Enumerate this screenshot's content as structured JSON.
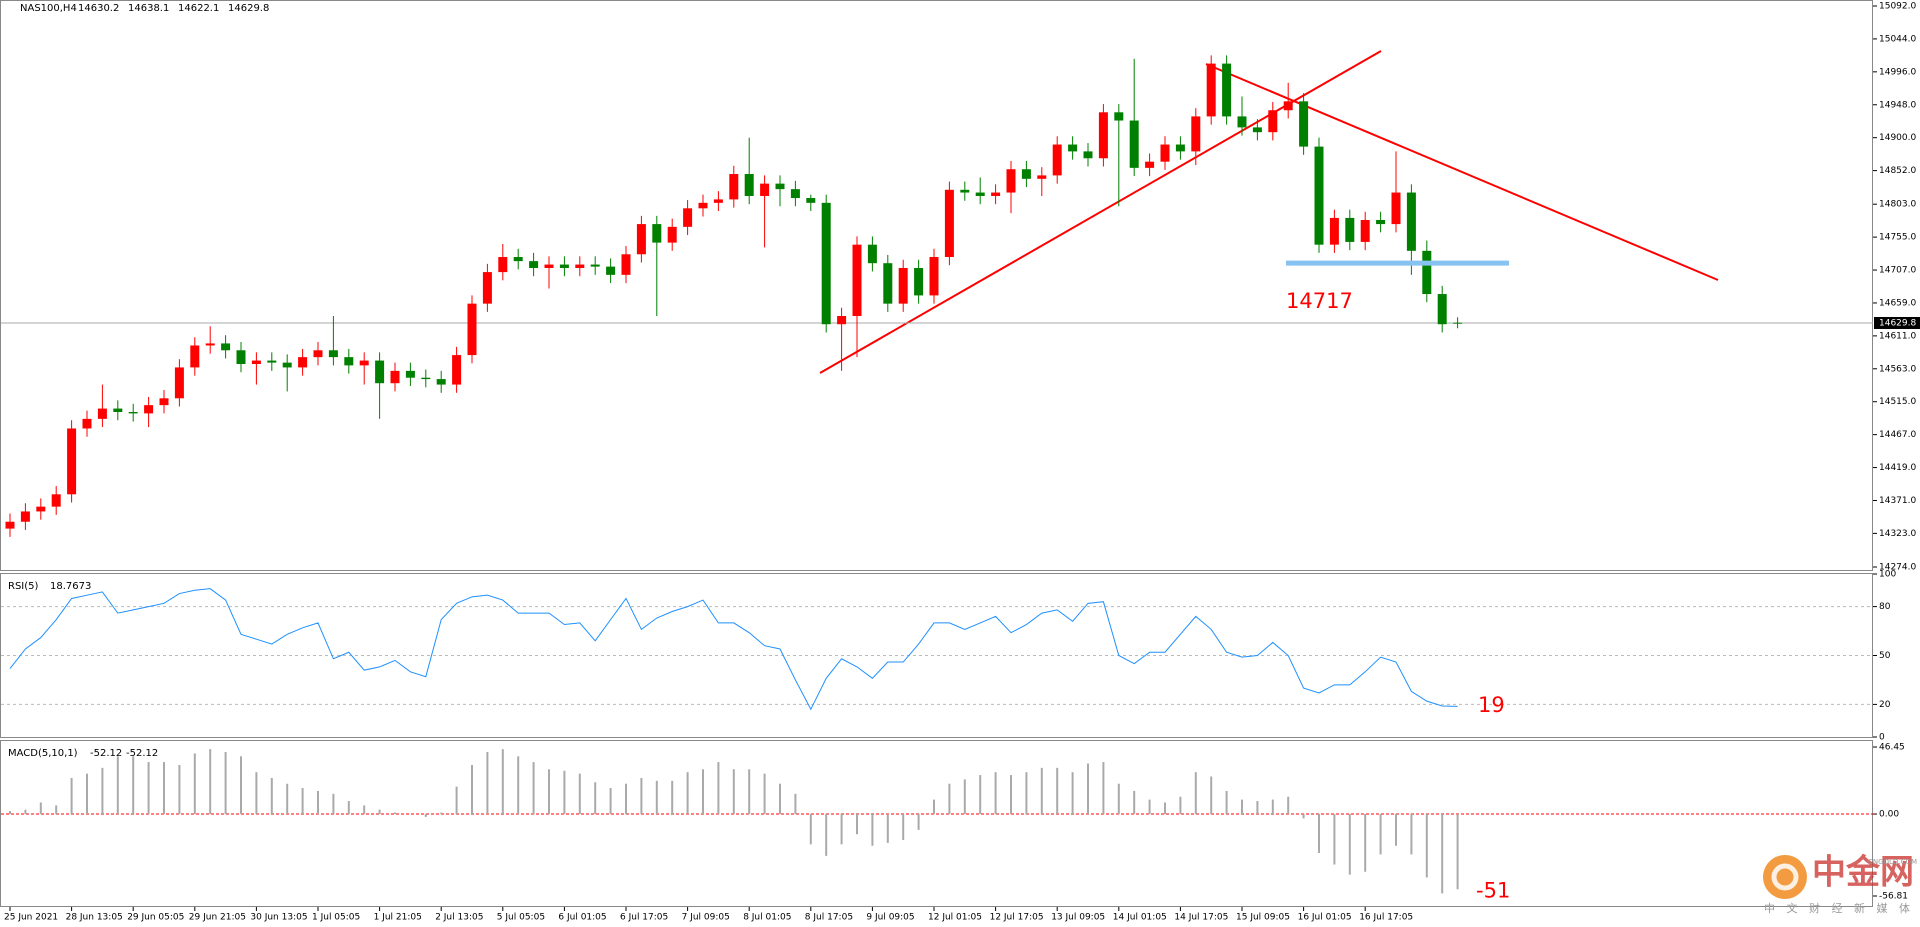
{
  "chart_data": [
    {
      "type": "candlestick",
      "title": "NAS100,H4",
      "categories": [
        "25 Jun 2021",
        null,
        null,
        null,
        "28 Jun 13:05",
        null,
        null,
        null,
        "29 Jun 05:05",
        null,
        null,
        null,
        "29 Jun 21:05",
        null,
        null,
        null,
        "30 Jun 13:05",
        null,
        null,
        null,
        "1 Jul 05:05",
        null,
        null,
        null,
        "1 Jul 21:05",
        null,
        null,
        null,
        "2 Jul 13:05",
        null,
        null,
        null,
        "5 Jul 05:05",
        null,
        null,
        null,
        "6 Jul 01:05",
        null,
        null,
        null,
        "6 Jul 17:05",
        null,
        null,
        null,
        "7 Jul 09:05",
        null,
        null,
        null,
        "8 Jul 01:05",
        null,
        null,
        null,
        "8 Jul 17:05",
        null,
        null,
        null,
        "9 Jul 09:05",
        null,
        null,
        null,
        "12 Jul 01:05",
        null,
        null,
        null,
        "12 Jul 17:05",
        null,
        null,
        null,
        "13 Jul 09:05",
        null,
        null,
        null,
        "14 Jul 01:05",
        null,
        null,
        null,
        "14 Jul 17:05",
        null,
        null,
        null,
        "15 Jul 09:05",
        null,
        null,
        null,
        "16 Jul 01:05",
        null,
        null,
        null,
        "16 Jul 17:05",
        null,
        null,
        null,
        null,
        null,
        null
      ],
      "ohlc": [
        [
          14330,
          14352,
          14318,
          14340
        ],
        [
          14340,
          14367,
          14328,
          14355
        ],
        [
          14355,
          14374,
          14343,
          14362
        ],
        [
          14362,
          14392,
          14350,
          14380
        ],
        [
          14380,
          14488,
          14368,
          14476
        ],
        [
          14476,
          14502,
          14464,
          14490
        ],
        [
          14490,
          14540,
          14478,
          14505
        ],
        [
          14505,
          14517,
          14488,
          14500
        ],
        [
          14500,
          14512,
          14486,
          14498
        ],
        [
          14498,
          14522,
          14478,
          14510
        ],
        [
          14510,
          14532,
          14498,
          14520
        ],
        [
          14520,
          14577,
          14508,
          14565
        ],
        [
          14565,
          14609,
          14553,
          14597
        ],
        [
          14597,
          14625,
          14585,
          14600
        ],
        [
          14600,
          14612,
          14578,
          14590
        ],
        [
          14590,
          14602,
          14558,
          14570
        ],
        [
          14570,
          14587,
          14540,
          14575
        ],
        [
          14575,
          14587,
          14560,
          14572
        ],
        [
          14572,
          14584,
          14530,
          14565
        ],
        [
          14565,
          14592,
          14553,
          14580
        ],
        [
          14580,
          14602,
          14568,
          14590
        ],
        [
          14590,
          14640,
          14568,
          14580
        ],
        [
          14580,
          14592,
          14556,
          14568
        ],
        [
          14568,
          14587,
          14540,
          14575
        ],
        [
          14575,
          14587,
          14490,
          14542
        ],
        [
          14542,
          14572,
          14530,
          14560
        ],
        [
          14560,
          14572,
          14538,
          14550
        ],
        [
          14550,
          14562,
          14536,
          14548
        ],
        [
          14548,
          14560,
          14528,
          14540
        ],
        [
          14540,
          14595,
          14528,
          14583
        ],
        [
          14583,
          14670,
          14571,
          14658
        ],
        [
          14658,
          14716,
          14646,
          14704
        ],
        [
          14704,
          14745,
          14692,
          14726
        ],
        [
          14726,
          14738,
          14708,
          14720
        ],
        [
          14720,
          14732,
          14698,
          14710
        ],
        [
          14710,
          14727,
          14680,
          14715
        ],
        [
          14715,
          14727,
          14698,
          14710
        ],
        [
          14710,
          14727,
          14698,
          14715
        ],
        [
          14715,
          14727,
          14700,
          14712
        ],
        [
          14712,
          14724,
          14688,
          14700
        ],
        [
          14700,
          14742,
          14688,
          14730
        ],
        [
          14730,
          14786,
          14718,
          14774
        ],
        [
          14774,
          14786,
          14640,
          14747
        ],
        [
          14747,
          14782,
          14735,
          14770
        ],
        [
          14770,
          14809,
          14758,
          14797
        ],
        [
          14797,
          14817,
          14785,
          14805
        ],
        [
          14805,
          14822,
          14793,
          14810
        ],
        [
          14810,
          14859,
          14798,
          14847
        ],
        [
          14847,
          14900,
          14803,
          14815
        ],
        [
          14815,
          14845,
          14740,
          14833
        ],
        [
          14833,
          14845,
          14800,
          14825
        ],
        [
          14825,
          14837,
          14800,
          14812
        ],
        [
          14812,
          14817,
          14793,
          14805
        ],
        [
          14805,
          14817,
          14616,
          14628
        ],
        [
          14628,
          14652,
          14560,
          14640
        ],
        [
          14640,
          14756,
          14580,
          14744
        ],
        [
          14744,
          14756,
          14705,
          14717
        ],
        [
          14717,
          14729,
          14646,
          14658
        ],
        [
          14658,
          14722,
          14646,
          14710
        ],
        [
          14710,
          14722,
          14658,
          14670
        ],
        [
          14670,
          14738,
          14658,
          14726
        ],
        [
          14726,
          14836,
          14714,
          14824
        ],
        [
          14824,
          14836,
          14808,
          14820
        ],
        [
          14820,
          14842,
          14803,
          14815
        ],
        [
          14815,
          14832,
          14803,
          14820
        ],
        [
          14820,
          14866,
          14790,
          14854
        ],
        [
          14854,
          14866,
          14828,
          14840
        ],
        [
          14840,
          14857,
          14815,
          14845
        ],
        [
          14845,
          14902,
          14833,
          14890
        ],
        [
          14890,
          14902,
          14868,
          14880
        ],
        [
          14880,
          14892,
          14858,
          14870
        ],
        [
          14870,
          14949,
          14858,
          14937
        ],
        [
          14937,
          14949,
          14800,
          14925
        ],
        [
          14925,
          15015,
          14844,
          14856
        ],
        [
          14856,
          14877,
          14844,
          14865
        ],
        [
          14865,
          14902,
          14853,
          14890
        ],
        [
          14890,
          14902,
          14868,
          14880
        ],
        [
          14880,
          14943,
          14860,
          14931
        ],
        [
          14931,
          15020,
          14919,
          15008
        ],
        [
          15008,
          15020,
          14919,
          14931
        ],
        [
          14931,
          14960,
          14903,
          14915
        ],
        [
          14915,
          14927,
          14896,
          14908
        ],
        [
          14908,
          14952,
          14896,
          14940
        ],
        [
          14940,
          14980,
          14928,
          14953
        ],
        [
          14953,
          14965,
          14875,
          14887
        ],
        [
          14887,
          14900,
          14732,
          14744
        ],
        [
          14744,
          14795,
          14732,
          14783
        ],
        [
          14783,
          14795,
          14736,
          14748
        ],
        [
          14748,
          14792,
          14736,
          14780
        ],
        [
          14780,
          14792,
          14762,
          14774
        ],
        [
          14774,
          14880,
          14762,
          14820
        ],
        [
          14820,
          14832,
          14700,
          14735
        ],
        [
          14735,
          14750,
          14660,
          14672
        ],
        [
          14672,
          14684,
          14616,
          14628
        ],
        [
          14630.2,
          14638.1,
          14622.1,
          14629.8
        ]
      ],
      "up_color": "#ff0000",
      "down_color": "#008000",
      "ylim": [
        14274,
        15092
      ],
      "yticks": [
        {
          "value": 15092,
          "label": "15092.0"
        },
        {
          "value": 15044,
          "label": "15044.0"
        },
        {
          "value": 14996,
          "label": "14996.0"
        },
        {
          "value": 14948,
          "label": "14948.0"
        },
        {
          "value": 14900,
          "label": "14900.0"
        },
        {
          "value": 14852,
          "label": "14852.0"
        },
        {
          "value": 14803,
          "label": "14803.0"
        },
        {
          "value": 14755,
          "label": "14755.0"
        },
        {
          "value": 14707,
          "label": "14707.0"
        },
        {
          "value": 14659,
          "label": "14659.0"
        },
        {
          "value": 14611,
          "label": "14611.0"
        },
        {
          "value": 14563,
          "label": "14563.0"
        },
        {
          "value": 14515,
          "label": "14515.0"
        },
        {
          "value": 14467,
          "label": "14467.0"
        },
        {
          "value": 14419,
          "label": "14419.0"
        },
        {
          "value": 14371,
          "label": "14371.0"
        },
        {
          "value": 14323,
          "label": "14323.0"
        },
        {
          "value": 14274,
          "label": "14274.0"
        }
      ],
      "annotation": 14717,
      "annotation_color": "#ff0000",
      "level_color": "#87c3f0"
    },
    {
      "type": "line",
      "title": "RSI(5)",
      "values": [
        42,
        54,
        61,
        72,
        85,
        87,
        89,
        76,
        78,
        80,
        82,
        88,
        90,
        91,
        84,
        63,
        60,
        57,
        63,
        67,
        70,
        48,
        52,
        41,
        43,
        47,
        40,
        37,
        72,
        82,
        86,
        87,
        84,
        76,
        76,
        76,
        69,
        70,
        59,
        72,
        85,
        66,
        73,
        77,
        80,
        84,
        70,
        70,
        64,
        56,
        54,
        35,
        17,
        36,
        48,
        43,
        36,
        46,
        46,
        57,
        70,
        70,
        66,
        70,
        74,
        64,
        69,
        76,
        78,
        71,
        82,
        83,
        50,
        45,
        52,
        52,
        63,
        74,
        66,
        52,
        49,
        50,
        58,
        50,
        30,
        27,
        32,
        32,
        40,
        49,
        46,
        28,
        22,
        19,
        18.7673
      ],
      "color": "#1e90ff",
      "ylim": [
        0,
        100
      ],
      "yticks": [
        100,
        80,
        50,
        20,
        0
      ],
      "grid": true,
      "annotation": 19,
      "annotation_color": "#ff0000"
    },
    {
      "type": "bar",
      "title": "MACD(5,10,1)",
      "values": [
        2,
        3,
        8,
        6,
        25,
        28,
        32,
        40,
        40,
        36,
        36,
        34,
        42,
        45,
        43,
        40,
        29,
        25,
        21,
        18,
        16,
        14,
        9,
        6,
        3,
        1,
        0,
        -2,
        1,
        19,
        34,
        43,
        45,
        40,
        36,
        31,
        30,
        28,
        22,
        18,
        21,
        25,
        23,
        23,
        29,
        31,
        36,
        31,
        31,
        28,
        21,
        14,
        -21,
        -29,
        -21,
        -14,
        -22,
        -20,
        -18,
        -11,
        10,
        21,
        24,
        27,
        29,
        27,
        29,
        32,
        32,
        29,
        35,
        36,
        21,
        16,
        10,
        8,
        12,
        29,
        26,
        16,
        10,
        9,
        10,
        12,
        -3,
        -27,
        -35,
        -42,
        -40,
        -28,
        -22,
        -28,
        -44,
        -55,
        -52.12
      ],
      "color": "#a9a9a9",
      "ylim": [
        -56.81,
        46.45
      ],
      "yticks": [
        46.45,
        {
          "value": 0,
          "label": "0.00"
        },
        -56.81
      ],
      "zero_color": "#ff0000",
      "annotation": -51,
      "annotation_color": "#ff0000"
    }
  ],
  "watermark": {
    "title": "中金网",
    "url": "CNGOLD.COM",
    "tagline": "中 文 财 经 新 媒 体"
  }
}
